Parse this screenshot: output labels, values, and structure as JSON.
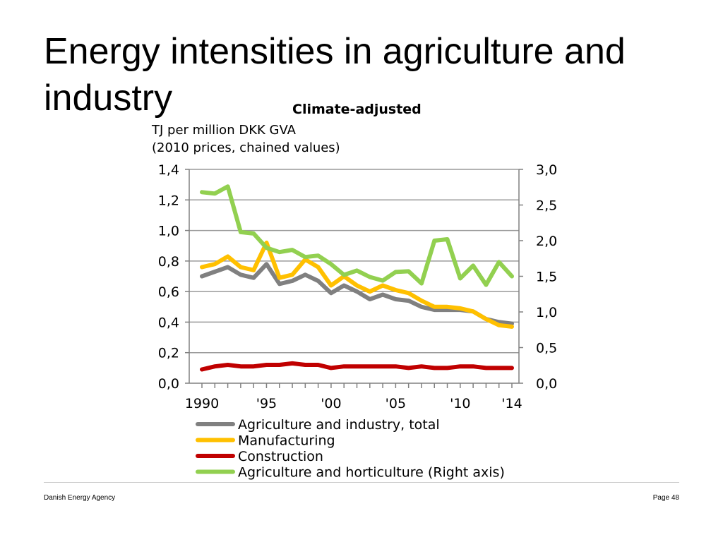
{
  "slide": {
    "title": "Energy intensities in agriculture and industry",
    "footer_left": "Danish Energy Agency",
    "footer_right": "Page 48"
  },
  "chart_data": {
    "type": "line",
    "title": "Climate-adjusted",
    "ylabel_lines": [
      "TJ per million DKK GVA",
      "(2010 prices, chained values)"
    ],
    "x": [
      1990,
      1991,
      1992,
      1993,
      1994,
      1995,
      1996,
      1997,
      1998,
      1999,
      2000,
      2001,
      2002,
      2003,
      2004,
      2005,
      2006,
      2007,
      2008,
      2009,
      2010,
      2011,
      2012,
      2013,
      2014
    ],
    "x_tick_labels": [
      {
        "x": 1990,
        "label": "1990"
      },
      {
        "x": 1995,
        "label": "'95"
      },
      {
        "x": 2000,
        "label": "'00"
      },
      {
        "x": 2005,
        "label": "'05"
      },
      {
        "x": 2010,
        "label": "'10"
      },
      {
        "x": 2014,
        "label": "'14"
      }
    ],
    "ylim_left": [
      0,
      1.4
    ],
    "ylim_right": [
      0,
      3.0
    ],
    "y_left_ticks": [
      "0,0",
      "0,2",
      "0,4",
      "0,6",
      "0,8",
      "1,0",
      "1,2",
      "1,4"
    ],
    "y_left_tick_values": [
      0,
      0.2,
      0.4,
      0.6,
      0.8,
      1.0,
      1.2,
      1.4
    ],
    "y_right_ticks": [
      "0,0",
      "0,5",
      "1,0",
      "1,5",
      "2,0",
      "2,5",
      "3,0"
    ],
    "y_right_tick_values": [
      0,
      0.5,
      1.0,
      1.5,
      2.0,
      2.5,
      3.0
    ],
    "grid": true,
    "legend_position": "bottom",
    "series": [
      {
        "name": "Agriculture and industry, total",
        "axis": "left",
        "color": "#808080",
        "values": [
          0.7,
          0.73,
          0.76,
          0.71,
          0.69,
          0.78,
          0.65,
          0.67,
          0.71,
          0.67,
          0.59,
          0.64,
          0.6,
          0.55,
          0.58,
          0.55,
          0.54,
          0.5,
          0.48,
          0.48,
          0.48,
          0.47,
          0.42,
          0.4,
          0.39
        ]
      },
      {
        "name": "Manufacturing",
        "axis": "left",
        "color": "#ffc000",
        "values": [
          0.76,
          0.78,
          0.83,
          0.76,
          0.74,
          0.92,
          0.69,
          0.71,
          0.81,
          0.76,
          0.64,
          0.7,
          0.64,
          0.6,
          0.64,
          0.61,
          0.59,
          0.54,
          0.5,
          0.5,
          0.49,
          0.47,
          0.42,
          0.38,
          0.37
        ]
      },
      {
        "name": "Construction",
        "axis": "left",
        "color": "#c00000",
        "values": [
          0.09,
          0.11,
          0.12,
          0.11,
          0.11,
          0.12,
          0.12,
          0.13,
          0.12,
          0.12,
          0.1,
          0.11,
          0.11,
          0.11,
          0.11,
          0.11,
          0.1,
          0.11,
          0.1,
          0.1,
          0.11,
          0.11,
          0.1,
          0.1,
          0.1
        ]
      },
      {
        "name": "Agriculture and horticulture (Right axis)",
        "axis": "right",
        "color": "#92d050",
        "values": [
          2.68,
          2.66,
          2.76,
          2.12,
          2.1,
          1.9,
          1.84,
          1.87,
          1.77,
          1.79,
          1.67,
          1.52,
          1.58,
          1.49,
          1.44,
          1.56,
          1.57,
          1.4,
          2.0,
          2.02,
          1.47,
          1.65,
          1.38,
          1.7,
          1.5
        ]
      }
    ]
  }
}
